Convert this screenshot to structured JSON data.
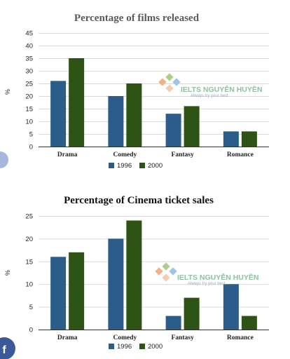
{
  "chart_data": [
    {
      "type": "bar",
      "title": "Percentage of films released",
      "ylabel": "%",
      "categories": [
        "Drama",
        "Comedy",
        "Fantasy",
        "Romance"
      ],
      "yticks": [
        "0",
        "5",
        "10",
        "15",
        "20",
        "25",
        "30",
        "35",
        "40",
        "45"
      ],
      "ylim": [
        0,
        45
      ],
      "grid": true,
      "legend_position": "bottom",
      "series": [
        {
          "name": "1996",
          "color": "#2b5d8b",
          "values": [
            26,
            20,
            13,
            6
          ]
        },
        {
          "name": "2000",
          "color": "#2e5415",
          "values": [
            35,
            25,
            16,
            6
          ]
        }
      ]
    },
    {
      "type": "bar",
      "title": "Percentage of Cinema ticket sales",
      "ylabel": "%",
      "categories": [
        "Drama",
        "Comedy",
        "Fantasy",
        "Romance"
      ],
      "yticks": [
        "0",
        "5",
        "10",
        "15",
        "20",
        "25"
      ],
      "ylim": [
        0,
        25
      ],
      "grid": true,
      "legend_position": "bottom",
      "series": [
        {
          "name": "1996",
          "color": "#2b5d8b",
          "values": [
            16,
            20,
            3,
            10
          ]
        },
        {
          "name": "2000",
          "color": "#2e5415",
          "values": [
            17,
            24,
            7,
            3
          ]
        }
      ]
    }
  ],
  "watermark": {
    "text": "IELTS NGUYỄN HUYỀN",
    "tagline": "Always try your best"
  },
  "facebook_badge": {
    "letter": "f",
    "color": "#3b5998"
  },
  "side_dot": {
    "color": "#a6b6dc"
  }
}
